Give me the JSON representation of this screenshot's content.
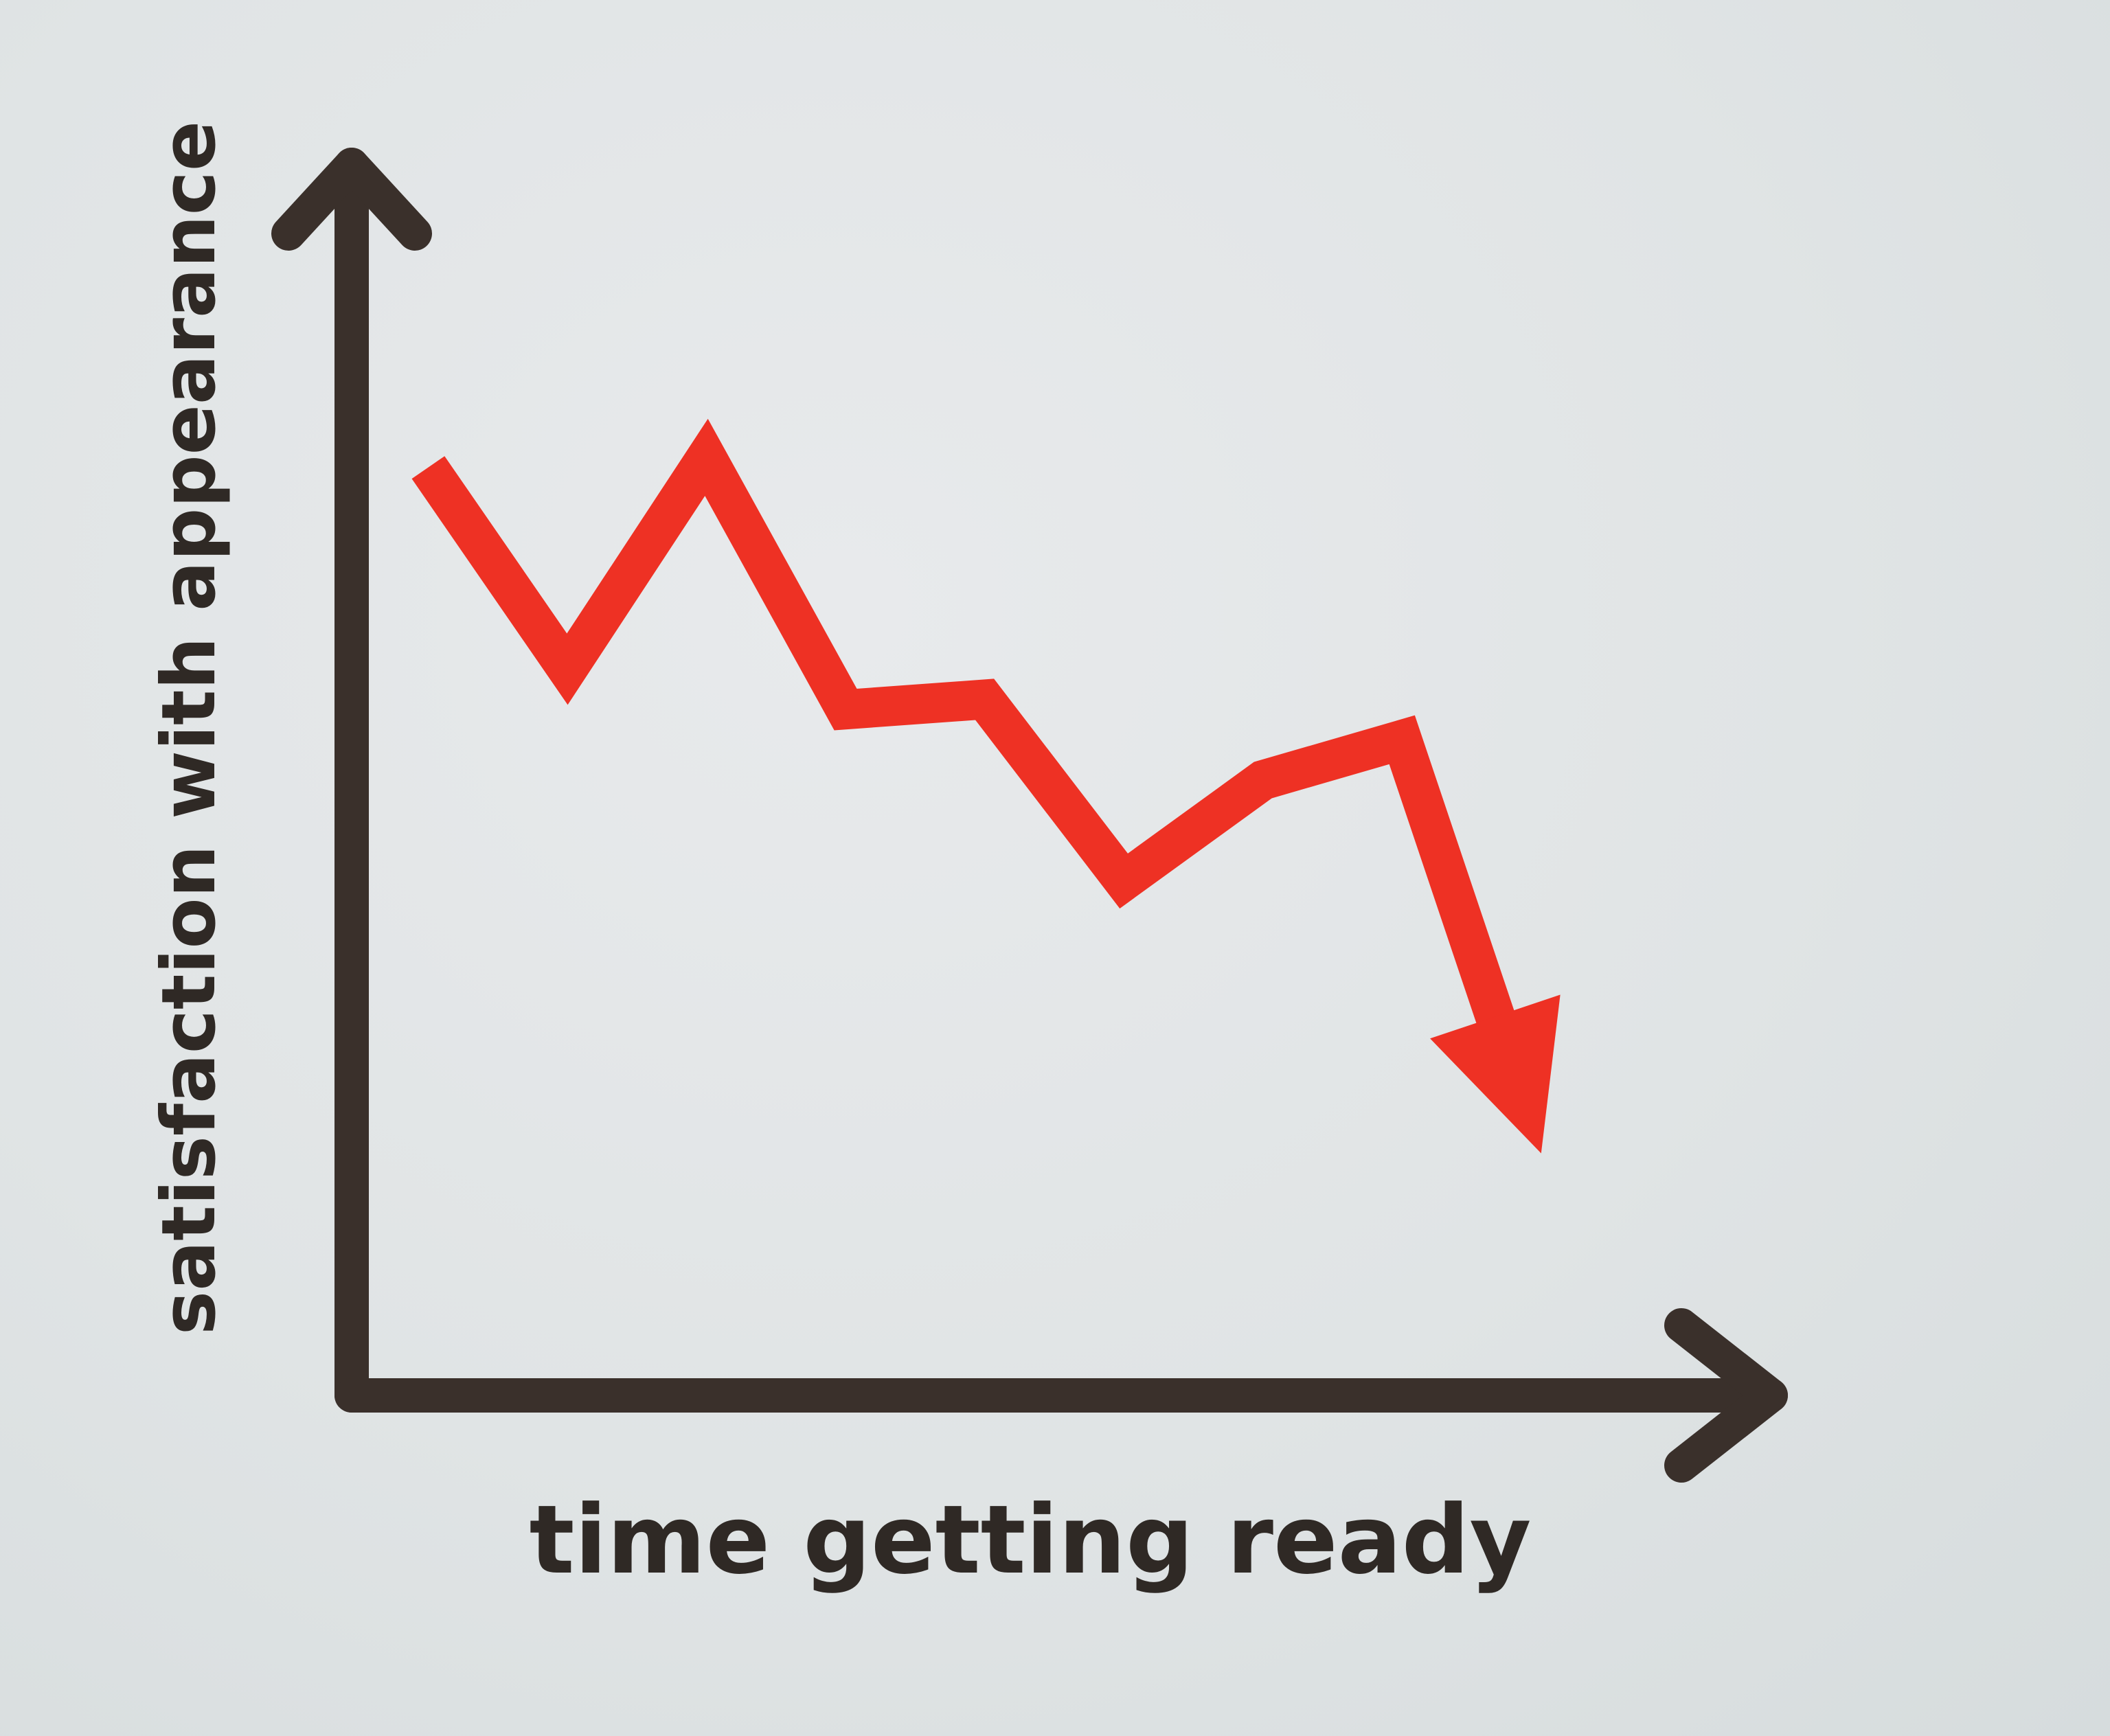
{
  "chart_data": {
    "type": "line",
    "title": "",
    "xlabel": "time getting ready",
    "ylabel": "satisfaction with appearance",
    "x": [
      0,
      1,
      2,
      3,
      4,
      5,
      6,
      7,
      8
    ],
    "series": [
      {
        "values": [
          0.7,
          0.5,
          0.71,
          0.46,
          0.47,
          0.29,
          0.39,
          0.43,
          0.02
        ],
        "color": "#ee3124",
        "ends_with_arrow": true
      }
    ],
    "xlim": [
      -0.55,
      9.65
    ],
    "ylim": [
      -0.22,
      1.0
    ],
    "axis_arrows": true,
    "grid": false,
    "legend": "none",
    "axis_color": "#3a302b"
  }
}
